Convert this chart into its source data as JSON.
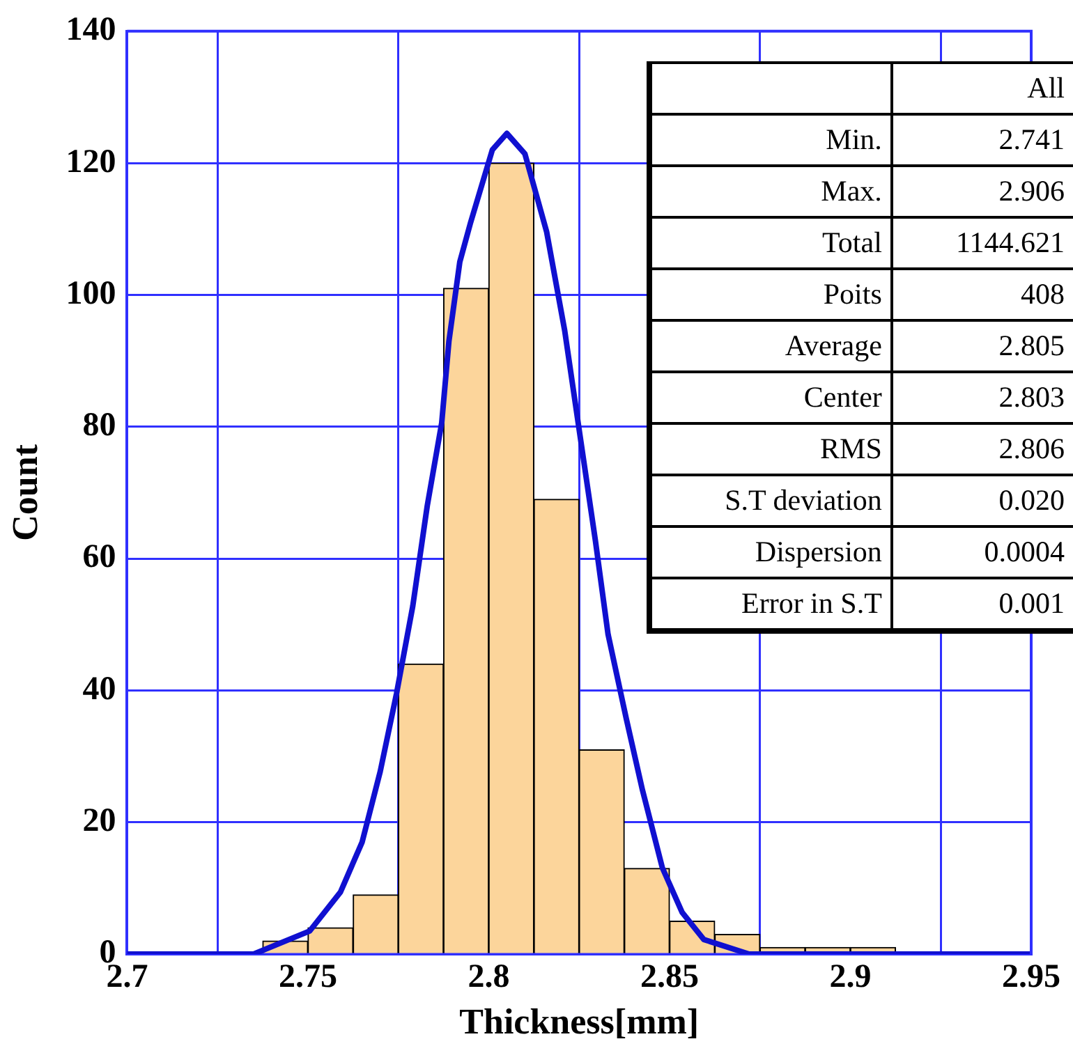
{
  "chart_data": [
    {
      "type": "histogram",
      "xlabel": "Thickness[mm]",
      "ylabel": "Count",
      "bins": [
        2.7375,
        2.75,
        2.7625,
        2.775,
        2.7875,
        2.8,
        2.8125,
        2.825,
        2.8375,
        2.85,
        2.8625,
        2.875,
        2.8875,
        2.9,
        2.9125
      ],
      "values": [
        2,
        4,
        9,
        44,
        101,
        120,
        69,
        31,
        13,
        5,
        3,
        1,
        1,
        1
      ],
      "color": "#fcd59b",
      "series": [
        {
          "type": "line",
          "color": "#1010d0",
          "x": [
            2.7,
            2.735,
            2.7505,
            2.759,
            2.765,
            2.77,
            2.7745,
            2.779,
            2.783,
            2.787,
            2.789,
            2.792,
            2.795,
            2.801,
            2.805,
            2.81,
            2.816,
            2.821,
            2.8255,
            2.8295,
            2.833,
            2.838,
            2.8425,
            2.848,
            2.8535,
            2.8595,
            2.872,
            2.95
          ],
          "values": [
            0,
            0,
            3.5,
            9.4,
            17,
            27.7,
            39.5,
            52.8,
            68,
            80.6,
            93,
            105,
            111,
            122,
            124.5,
            121.4,
            109.6,
            94.6,
            77.7,
            62.7,
            48.5,
            35.8,
            24.9,
            13.1,
            6.3,
            2.2,
            0,
            0
          ]
        }
      ],
      "xlim": [
        2.7,
        2.95
      ],
      "xticks": [
        2.7,
        2.75,
        2.8,
        2.85,
        2.9,
        2.95
      ],
      "ylim": [
        0,
        140
      ],
      "yticks": [
        0,
        20,
        40,
        60,
        80,
        100,
        120,
        140
      ],
      "grid": true,
      "legend": false
    },
    {
      "type": "other",
      "categories": [
        "Min.",
        "Max.",
        "Total",
        "Poits",
        "Average",
        "Center",
        "RMS",
        "S.T deviation",
        "Dispersion",
        "Error in S.T"
      ],
      "legend_title": "All",
      "values": [
        2.741,
        2.906,
        1144.621,
        408,
        2.805,
        2.803,
        2.806,
        0.02,
        0.0004,
        0.001
      ],
      "value_labels": [
        "2.741",
        "2.906",
        "1144.621",
        "408",
        "2.805",
        "2.803",
        "2.806",
        "0.020",
        "0.0004",
        "0.001"
      ]
    }
  ]
}
